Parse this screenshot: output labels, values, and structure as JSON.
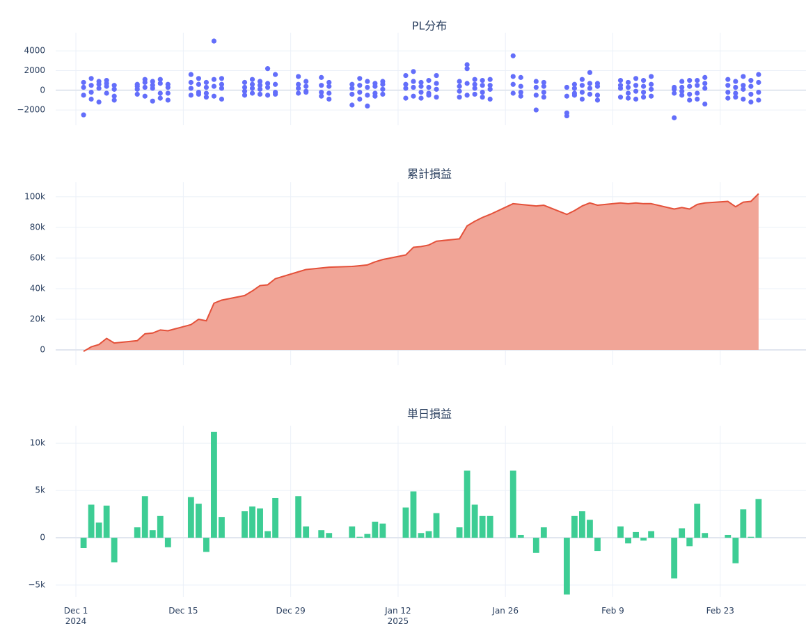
{
  "chart_data": [
    {
      "type": "scatter",
      "title": "PL分布",
      "color": "#636efa",
      "grid": true,
      "xlim": [
        "2024-11-28",
        "2025-03-06"
      ],
      "ylim": [
        -3550,
        5850
      ],
      "yticks": [
        {
          "value": -2000,
          "label": "−2000"
        },
        0,
        2000,
        4000
      ],
      "x": [
        "2024-12-02",
        "2024-12-03",
        "2024-12-04",
        "2024-12-05",
        "2024-12-06",
        "2024-12-09",
        "2024-12-10",
        "2024-12-11",
        "2024-12-12",
        "2024-12-13",
        "2024-12-16",
        "2024-12-17",
        "2024-12-18",
        "2024-12-19",
        "2024-12-20",
        "2024-12-23",
        "2024-12-24",
        "2024-12-25",
        "2024-12-26",
        "2024-12-27",
        "2024-12-30",
        "2024-12-31",
        "2025-01-02",
        "2025-01-03",
        "2025-01-06",
        "2025-01-07",
        "2025-01-08",
        "2025-01-09",
        "2025-01-10",
        "2025-01-13",
        "2025-01-14",
        "2025-01-15",
        "2025-01-16",
        "2025-01-17",
        "2025-01-20",
        "2025-01-21",
        "2025-01-22",
        "2025-01-23",
        "2025-01-24",
        "2025-01-27",
        "2025-01-28",
        "2025-01-30",
        "2025-01-31",
        "2025-02-03",
        "2025-02-04",
        "2025-02-05",
        "2025-02-06",
        "2025-02-07",
        "2025-02-10",
        "2025-02-11",
        "2025-02-12",
        "2025-02-13",
        "2025-02-14",
        "2025-02-17",
        "2025-02-18",
        "2025-02-19",
        "2025-02-20",
        "2025-02-21",
        "2025-02-24",
        "2025-02-25",
        "2025-02-26",
        "2025-02-27",
        "2025-02-28"
      ],
      "values": [
        [
          -2500,
          -500,
          800,
          300
        ],
        [
          1200,
          -200,
          500,
          -900
        ],
        [
          900,
          200,
          -1200,
          600
        ],
        [
          1000,
          -300,
          400,
          700
        ],
        [
          -1000,
          500,
          -600,
          100
        ],
        [
          400,
          -400,
          600,
          100
        ],
        [
          1100,
          -600,
          800,
          300
        ],
        [
          900,
          -1100,
          200,
          500
        ],
        [
          1100,
          -300,
          700,
          -800
        ],
        [
          600,
          -1000,
          300,
          -300
        ],
        [
          1600,
          -500,
          800,
          200
        ],
        [
          1200,
          -200,
          600,
          -400
        ],
        [
          800,
          -700,
          300,
          -300
        ],
        [
          5000,
          1100,
          -600,
          400
        ],
        [
          1200,
          -900,
          600,
          200
        ],
        [
          800,
          -500,
          300,
          -100
        ],
        [
          1100,
          -300,
          600,
          200
        ],
        [
          900,
          -400,
          500,
          100
        ],
        [
          2200,
          -500,
          700,
          300
        ],
        [
          1600,
          -400,
          600,
          -200
        ],
        [
          1400,
          -300,
          600,
          200
        ],
        [
          900,
          -100,
          400,
          -200
        ],
        [
          1300,
          -600,
          500,
          -200
        ],
        [
          800,
          -900,
          400,
          -300
        ],
        [
          600,
          -1500,
          200,
          -400
        ],
        [
          1200,
          -900,
          500,
          -200
        ],
        [
          900,
          -1600,
          300,
          -500
        ],
        [
          700,
          -600,
          400,
          -300
        ],
        [
          900,
          -400,
          600,
          100
        ],
        [
          1500,
          -800,
          600,
          200
        ],
        [
          1900,
          -600,
          900,
          300
        ],
        [
          800,
          -800,
          400,
          -200
        ],
        [
          1000,
          -500,
          300,
          -300
        ],
        [
          1500,
          -700,
          700,
          100
        ],
        [
          900,
          -700,
          400,
          -100
        ],
        [
          2600,
          2200,
          -500,
          700
        ],
        [
          1100,
          -400,
          600,
          200
        ],
        [
          1000,
          -700,
          500,
          -200
        ],
        [
          1100,
          -900,
          500,
          100
        ],
        [
          3500,
          1400,
          -300,
          600
        ],
        [
          1300,
          -600,
          400,
          -200
        ],
        [
          900,
          -2000,
          300,
          -500
        ],
        [
          800,
          -700,
          400,
          -200
        ],
        [
          -2300,
          -2600,
          300,
          -600
        ],
        [
          600,
          -500,
          200,
          -300
        ],
        [
          1100,
          -900,
          500,
          -200
        ],
        [
          1800,
          -400,
          700,
          200
        ],
        [
          700,
          -1000,
          400,
          -500
        ],
        [
          1000,
          -700,
          500,
          200
        ],
        [
          800,
          -800,
          300,
          -300
        ],
        [
          1200,
          -900,
          500,
          -100
        ],
        [
          1000,
          -700,
          400,
          -200
        ],
        [
          1400,
          -600,
          600,
          100
        ],
        [
          -2800,
          300,
          -300,
          100
        ],
        [
          900,
          -500,
          300,
          -100
        ],
        [
          1000,
          -1000,
          400,
          -400
        ],
        [
          1000,
          -900,
          500,
          -300
        ],
        [
          1300,
          -1400,
          700,
          200
        ],
        [
          1100,
          -800,
          500,
          -200
        ],
        [
          900,
          -700,
          300,
          -300
        ],
        [
          1400,
          -900,
          500,
          100
        ],
        [
          1000,
          -1200,
          400,
          -400
        ],
        [
          1600,
          -1000,
          800,
          -200
        ]
      ]
    },
    {
      "type": "area",
      "title": "累計損益",
      "color": "#e4513a",
      "fill": "#f1a597",
      "grid": true,
      "xlim": [
        "2024-11-28",
        "2025-03-06"
      ],
      "ylim": [
        -10000,
        109500
      ],
      "yticks": [
        0,
        {
          "value": 20000,
          "label": "20k"
        },
        {
          "value": 40000,
          "label": "40k"
        },
        {
          "value": 60000,
          "label": "60k"
        },
        {
          "value": 80000,
          "label": "80k"
        },
        {
          "value": 100000,
          "label": "100k"
        }
      ],
      "x": [
        "2024-12-02",
        "2024-12-03",
        "2024-12-04",
        "2024-12-05",
        "2024-12-06",
        "2024-12-09",
        "2024-12-10",
        "2024-12-11",
        "2024-12-12",
        "2024-12-13",
        "2024-12-16",
        "2024-12-17",
        "2024-12-18",
        "2024-12-19",
        "2024-12-20",
        "2024-12-23",
        "2024-12-24",
        "2024-12-25",
        "2024-12-26",
        "2024-12-27",
        "2024-12-30",
        "2024-12-31",
        "2025-01-02",
        "2025-01-03",
        "2025-01-06",
        "2025-01-07",
        "2025-01-08",
        "2025-01-09",
        "2025-01-10",
        "2025-01-13",
        "2025-01-14",
        "2025-01-15",
        "2025-01-16",
        "2025-01-17",
        "2025-01-20",
        "2025-01-21",
        "2025-01-22",
        "2025-01-23",
        "2025-01-24",
        "2025-01-27",
        "2025-01-28",
        "2025-01-30",
        "2025-01-31",
        "2025-02-03",
        "2025-02-04",
        "2025-02-05",
        "2025-02-06",
        "2025-02-07",
        "2025-02-10",
        "2025-02-11",
        "2025-02-12",
        "2025-02-13",
        "2025-02-14",
        "2025-02-17",
        "2025-02-18",
        "2025-02-19",
        "2025-02-20",
        "2025-02-21",
        "2025-02-24",
        "2025-02-25",
        "2025-02-26",
        "2025-02-27",
        "2025-02-28"
      ],
      "values": [
        -1000,
        2000,
        3500,
        7500,
        4500,
        6000,
        10500,
        11000,
        13000,
        12500,
        16500,
        20000,
        19000,
        30500,
        32500,
        35500,
        38500,
        42000,
        42500,
        46500,
        51000,
        52500,
        53500,
        54000,
        54500,
        55000,
        55500,
        57500,
        59000,
        62000,
        67000,
        67500,
        68500,
        71000,
        72500,
        81000,
        84000,
        86500,
        88500,
        95500,
        95000,
        94000,
        94500,
        88500,
        91000,
        94000,
        96000,
        94500,
        96000,
        95500,
        96000,
        95500,
        95500,
        92000,
        93000,
        92000,
        95000,
        96000,
        97000,
        93500,
        96500,
        97000,
        102000
      ]
    },
    {
      "type": "bar",
      "title": "単日損益",
      "color": "#3dcd94",
      "grid": true,
      "xlim": [
        "2024-11-28",
        "2025-03-06"
      ],
      "xticks": [
        {
          "value": "2024-12-01",
          "label": "Dec 1\n2024"
        },
        {
          "value": "2024-12-15",
          "label": "Dec 15"
        },
        {
          "value": "2024-12-29",
          "label": "Dec 29"
        },
        {
          "value": "2025-01-12",
          "label": "Jan 12\n2025"
        },
        {
          "value": "2025-01-26",
          "label": "Jan 26"
        },
        {
          "value": "2025-02-09",
          "label": "Feb 9"
        },
        {
          "value": "2025-02-23",
          "label": "Feb 23"
        }
      ],
      "ylim": [
        -6250,
        11850
      ],
      "yticks": [
        {
          "value": -5000,
          "label": "−5k"
        },
        0,
        {
          "value": 5000,
          "label": "5k"
        },
        {
          "value": 10000,
          "label": "10k"
        }
      ],
      "x": [
        "2024-12-02",
        "2024-12-03",
        "2024-12-04",
        "2024-12-05",
        "2024-12-06",
        "2024-12-09",
        "2024-12-10",
        "2024-12-11",
        "2024-12-12",
        "2024-12-13",
        "2024-12-16",
        "2024-12-17",
        "2024-12-18",
        "2024-12-19",
        "2024-12-20",
        "2024-12-23",
        "2024-12-24",
        "2024-12-25",
        "2024-12-26",
        "2024-12-27",
        "2024-12-30",
        "2024-12-31",
        "2025-01-02",
        "2025-01-03",
        "2025-01-06",
        "2025-01-07",
        "2025-01-08",
        "2025-01-09",
        "2025-01-10",
        "2025-01-13",
        "2025-01-14",
        "2025-01-15",
        "2025-01-16",
        "2025-01-17",
        "2025-01-20",
        "2025-01-21",
        "2025-01-22",
        "2025-01-23",
        "2025-01-24",
        "2025-01-27",
        "2025-01-28",
        "2025-01-30",
        "2025-01-31",
        "2025-02-03",
        "2025-02-04",
        "2025-02-05",
        "2025-02-06",
        "2025-02-07",
        "2025-02-10",
        "2025-02-11",
        "2025-02-12",
        "2025-02-13",
        "2025-02-14",
        "2025-02-17",
        "2025-02-18",
        "2025-02-19",
        "2025-02-20",
        "2025-02-21",
        "2025-02-24",
        "2025-02-25",
        "2025-02-26",
        "2025-02-27",
        "2025-02-28"
      ],
      "values": [
        -1100,
        3500,
        1600,
        3400,
        -2600,
        1100,
        4400,
        800,
        2300,
        -1000,
        4300,
        3600,
        -1500,
        11200,
        2200,
        2800,
        3300,
        3100,
        700,
        4200,
        4400,
        1200,
        800,
        500,
        1200,
        100,
        400,
        1700,
        1500,
        3200,
        4900,
        500,
        700,
        2600,
        1100,
        7100,
        3500,
        2300,
        2300,
        7100,
        300,
        -1600,
        1100,
        -6000,
        2300,
        2800,
        1900,
        -1400,
        1200,
        -600,
        600,
        -300,
        700,
        -4300,
        1000,
        -900,
        3600,
        500,
        300,
        -2700,
        3000,
        100,
        4100
      ]
    }
  ]
}
